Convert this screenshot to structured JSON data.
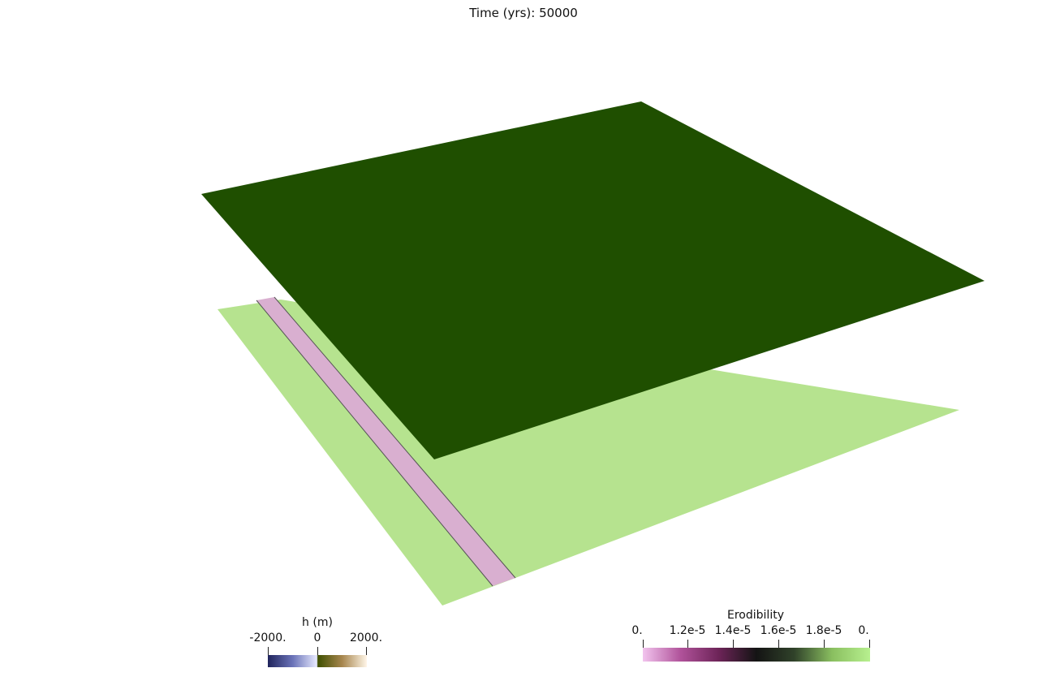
{
  "title": "Time (yrs): 50000",
  "colors": {
    "background": "#ffffff",
    "upper_surface": "#1f4f00",
    "lower_surface": "#b6e38f",
    "strip": "#d9afd0",
    "strip_edge": "#555555"
  },
  "colorbars": {
    "h": {
      "title": "h (m)",
      "ticks": [
        "-2000.",
        "0",
        "2000."
      ],
      "gradient": [
        "#20245c",
        "#6a73b8",
        "#e8eaff",
        "#3f4f00",
        "#a7864e",
        "#fff6e8"
      ]
    },
    "erodibility": {
      "title": "Erodibility",
      "ticks": [
        "0.",
        "1.2e-5",
        "1.4e-5",
        "1.6e-5",
        "1.8e-5",
        "0."
      ],
      "gradient": [
        "#f2c4ee",
        "#b0529a",
        "#6d2458",
        "#141414",
        "#30422a",
        "#8abf60",
        "#b7f08f"
      ]
    }
  }
}
